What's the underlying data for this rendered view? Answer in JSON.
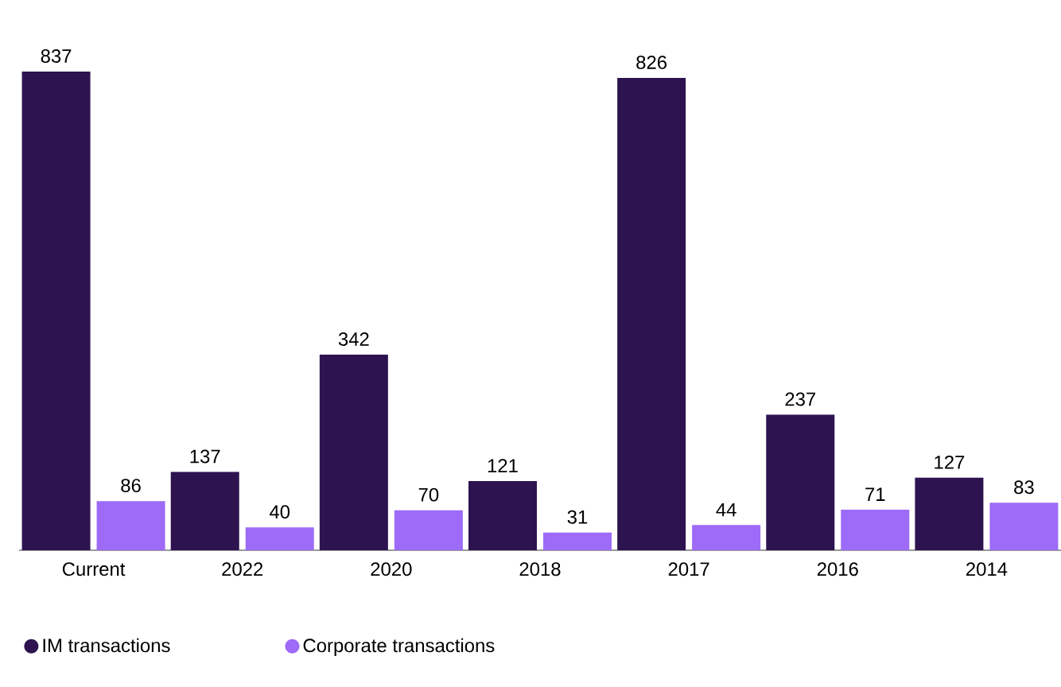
{
  "chart_data": {
    "type": "bar",
    "categories": [
      "Current",
      "2022",
      "2020",
      "2018",
      "2017",
      "2016",
      "2014"
    ],
    "series": [
      {
        "name": "IM transactions",
        "color": "#2d1450",
        "values": [
          837,
          137,
          342,
          121,
          826,
          237,
          127
        ]
      },
      {
        "name": "Corporate transactions",
        "color": "#9d6bf7",
        "values": [
          86,
          40,
          70,
          31,
          44,
          71,
          83
        ]
      }
    ],
    "data_labels": true,
    "legend": "bottom"
  }
}
